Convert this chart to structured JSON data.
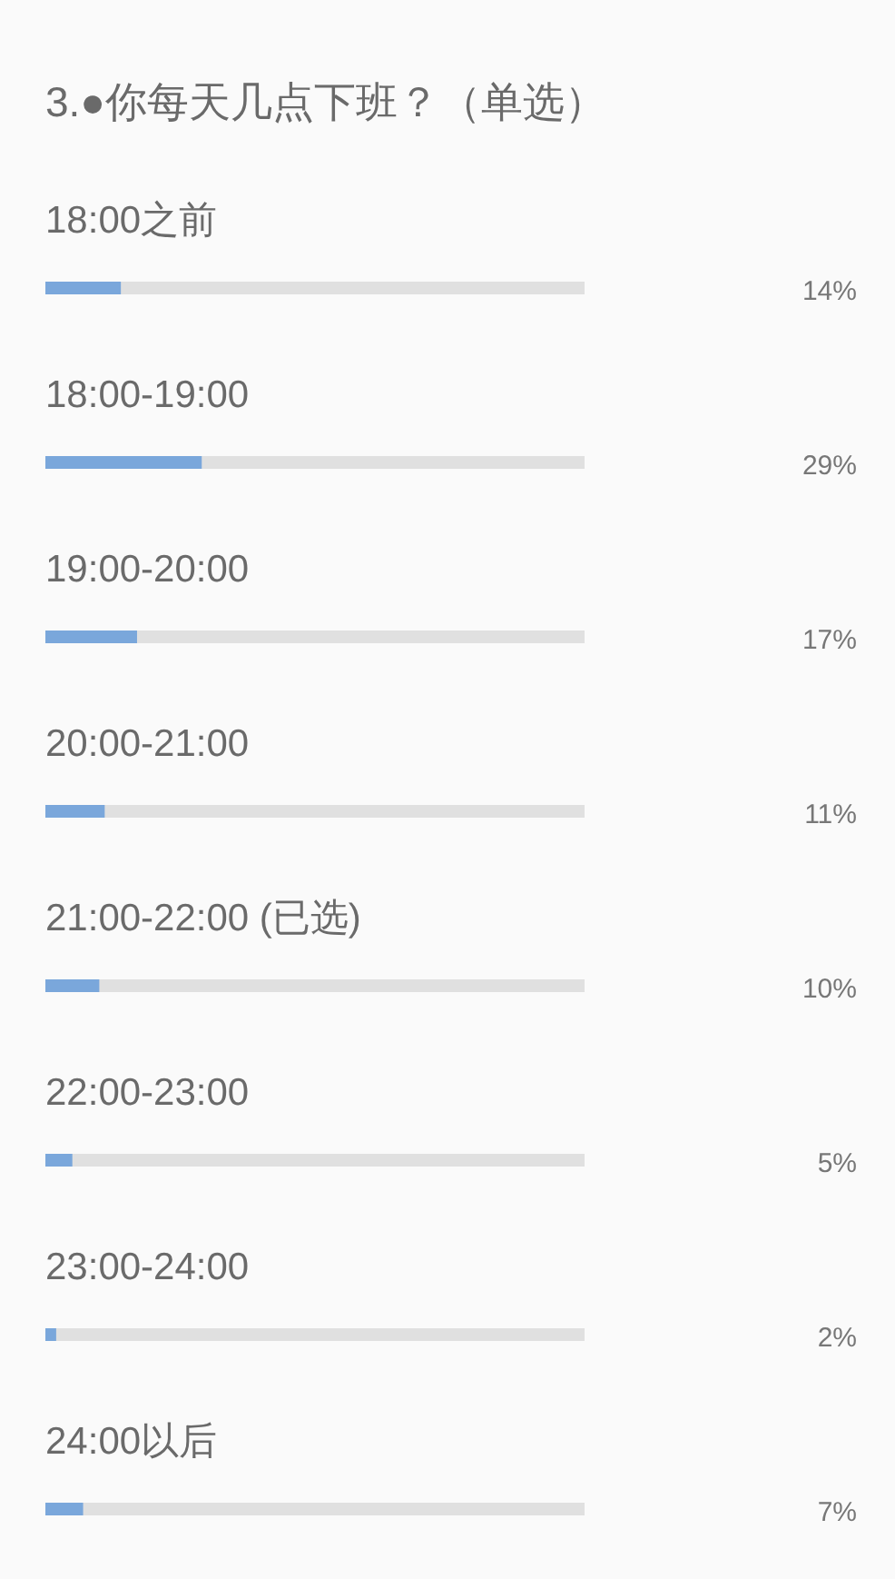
{
  "chart_data": {
    "type": "bar",
    "orientation": "horizontal",
    "title": "3.●你每天几点下班？（单选）",
    "categories": [
      "18:00之前",
      "18:00-19:00",
      "19:00-20:00",
      "20:00-21:00",
      "21:00-22:00 (已选)",
      "22:00-23:00",
      "23:00-24:00",
      "24:00以后"
    ],
    "values": [
      14,
      29,
      17,
      11,
      10,
      5,
      2,
      7
    ],
    "value_labels": [
      "14%",
      "29%",
      "17%",
      "11%",
      "10%",
      "5%",
      "2%",
      "7%"
    ],
    "color": "#7aa7db",
    "xlim": [
      0,
      100
    ],
    "tick_labels": "y"
  }
}
